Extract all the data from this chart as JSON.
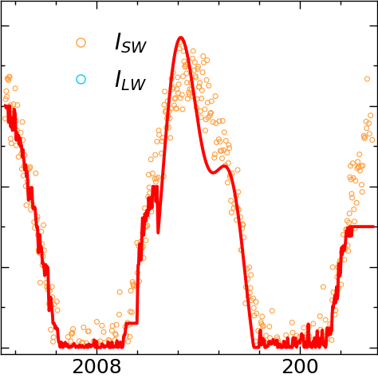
{
  "sw_color": "#FFA040",
  "lw_color": "#00CCFF",
  "line_color": "#FF0000",
  "line_width": 2.8,
  "background_color": "#FFFFFF",
  "xlim_start": 2007.53,
  "xlim_end": 2009.38,
  "ylim_bottom": -8,
  "ylim_top": 430,
  "x_ticks": [
    2008.0,
    2009.0
  ],
  "x_tick_labels": [
    "2008",
    "200"
  ]
}
